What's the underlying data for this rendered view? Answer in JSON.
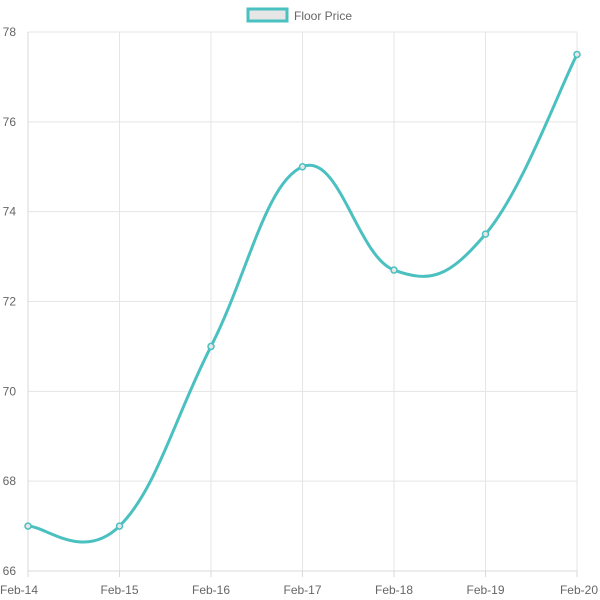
{
  "chart_data": {
    "type": "line",
    "title": "",
    "xlabel": "",
    "ylabel": "",
    "categories": [
      "Feb-14",
      "Feb-15",
      "Feb-16",
      "Feb-17",
      "Feb-18",
      "Feb-19",
      "Feb-20"
    ],
    "series": [
      {
        "name": "Floor Price",
        "values": [
          67.0,
          67.0,
          71.0,
          75.0,
          72.7,
          73.5,
          77.5
        ],
        "color": "#4bc0c0"
      }
    ],
    "ylim": [
      66,
      78
    ],
    "yticks": [
      66,
      68,
      70,
      72,
      74,
      76,
      78
    ],
    "grid": true,
    "legend_position": "top-center",
    "legend_swatch_fill": "#e6e6e6",
    "curve": "smooth"
  }
}
